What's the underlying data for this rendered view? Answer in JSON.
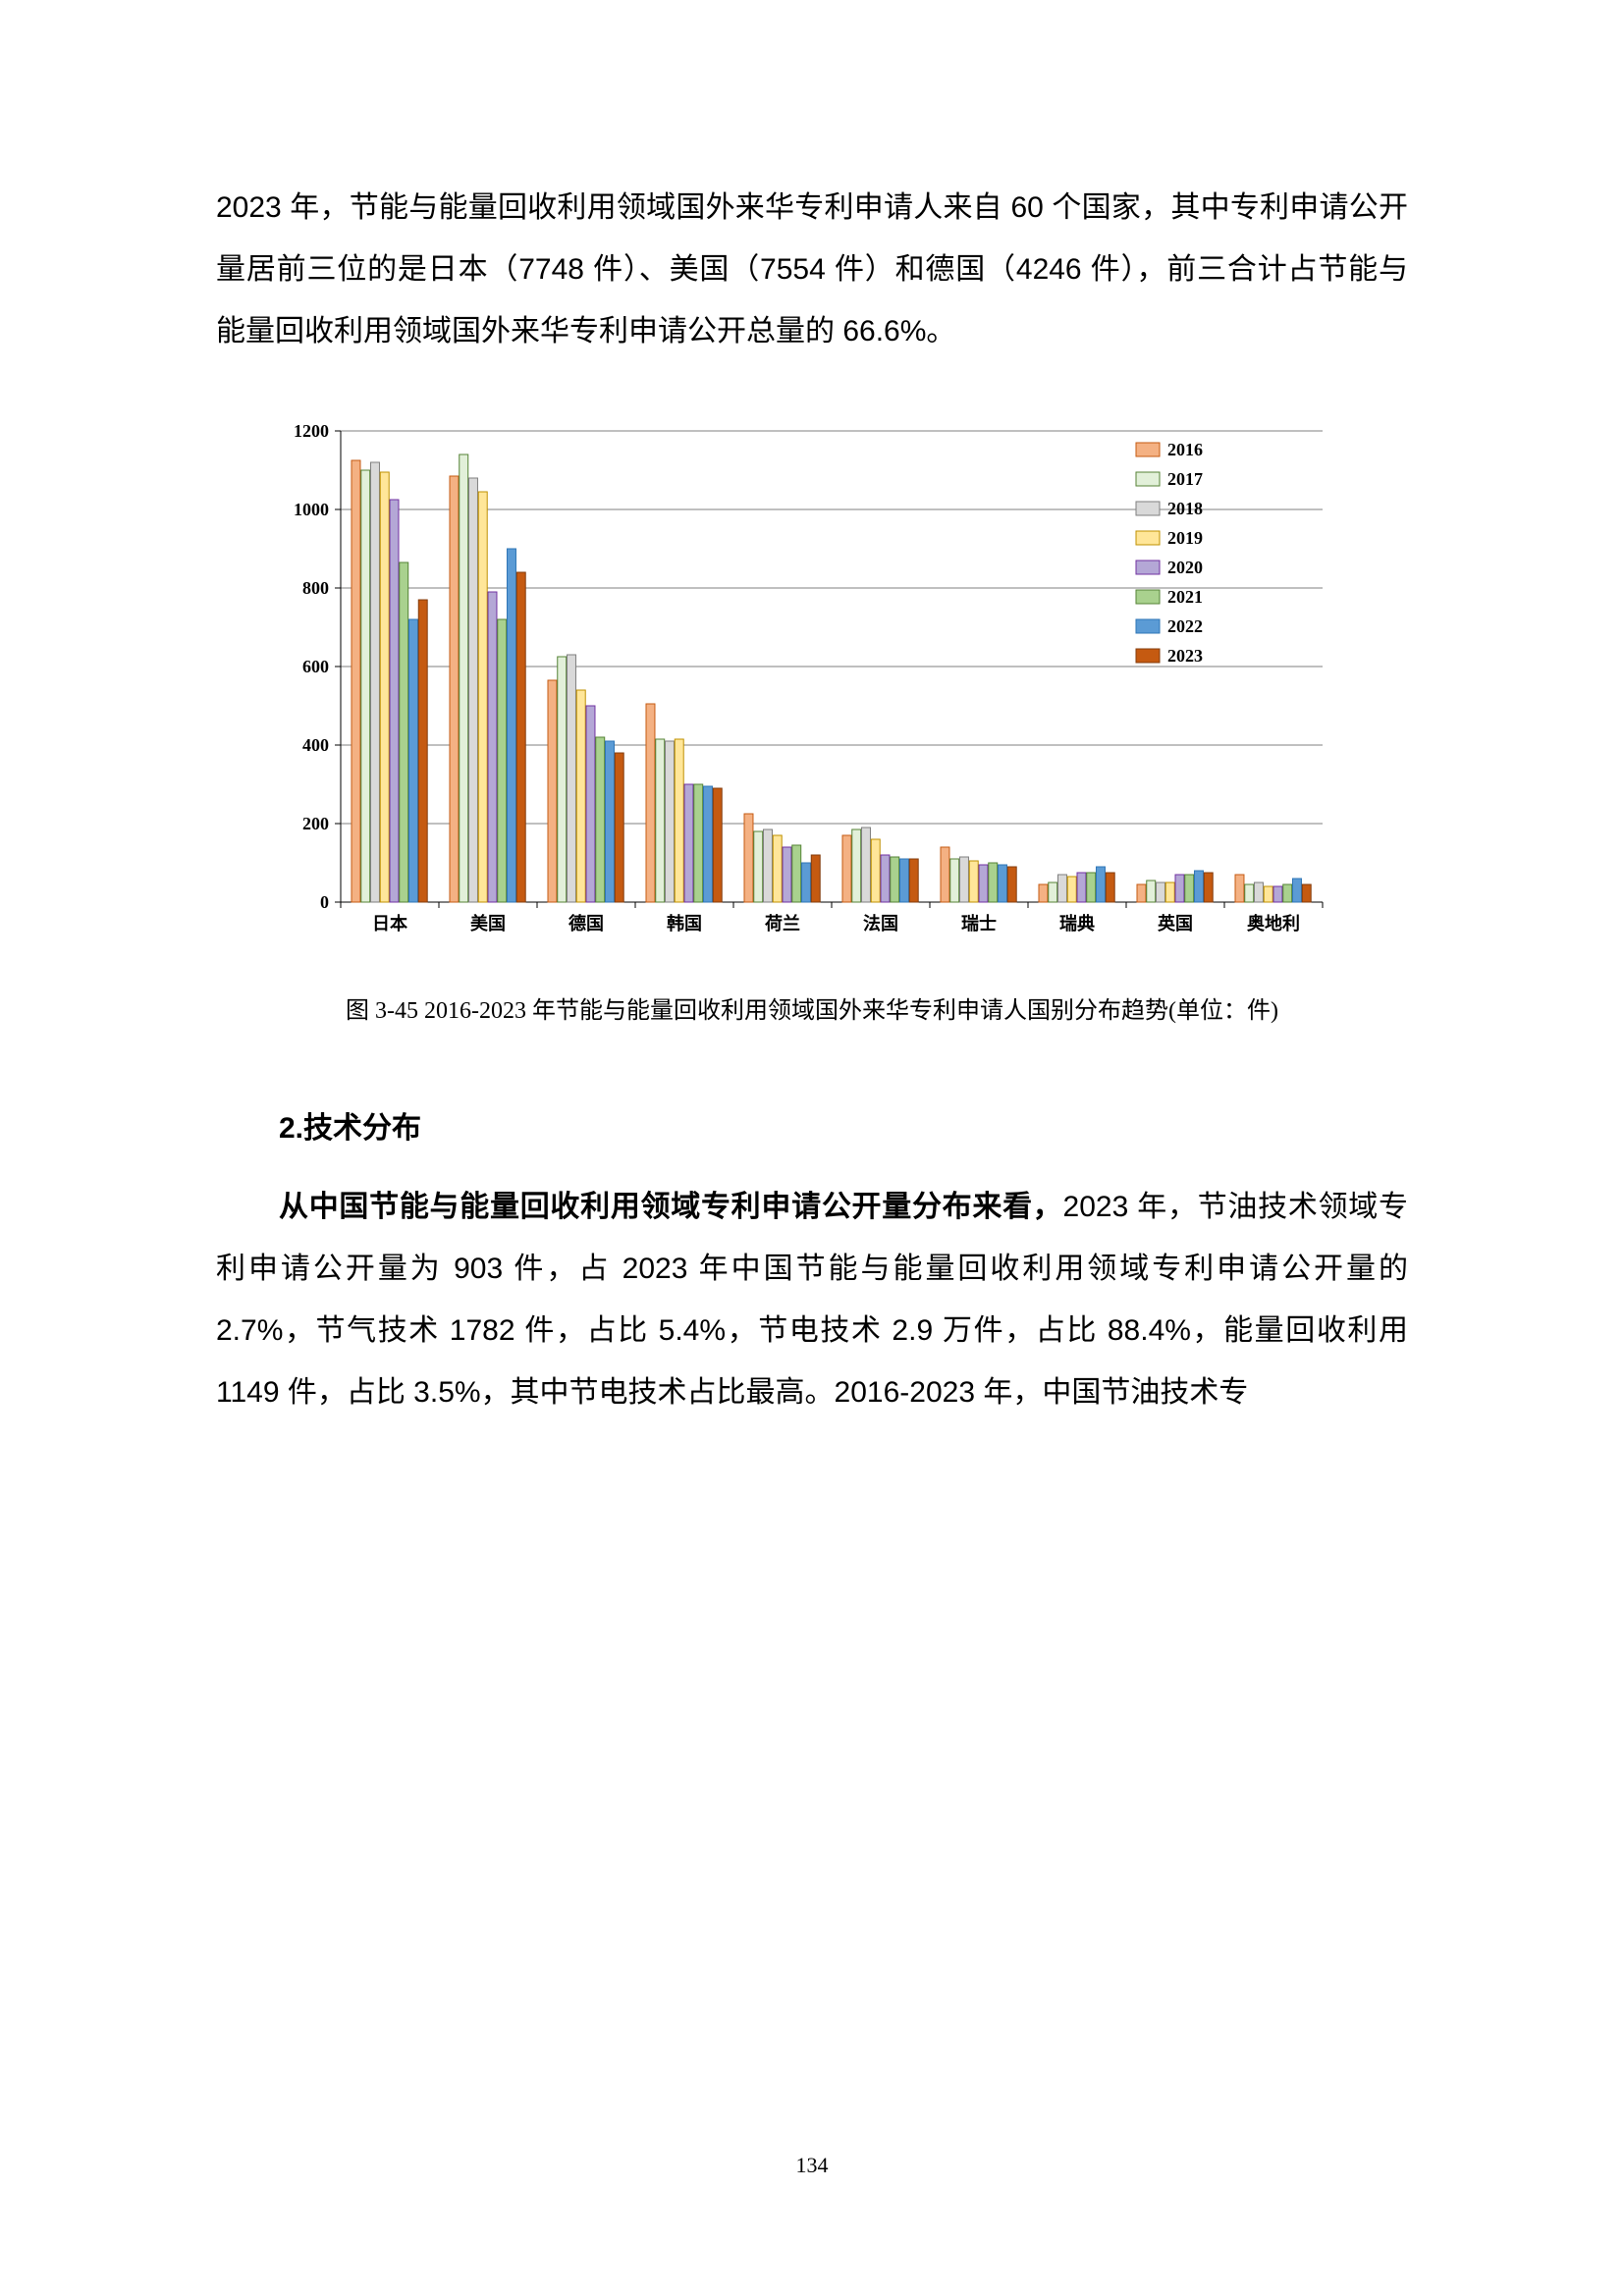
{
  "para_top_1": "2023 年，节能与能量回收利用领域国外来华专利申请人来自 60 个国家，其中专利申请公开量居前三位的是日本（7748 件）、美国（7554 件）和德国（4246 件），前三合计占节能与能量回收利用领域国外来华专利申请公开总量的 66.6%。",
  "chart_caption": "图 3-45 2016-2023 年节能与能量回收利用领域国外来华专利申请人国别分布趋势(单位：件)",
  "section_head": "2.技术分布",
  "para_bot_bold": "从中国节能与能量回收利用领域专利申请公开量分布来看，",
  "para_bot_rest": "2023 年，节油技术领域专利申请公开量为 903 件，占 2023 年中国节能与能量回收利用领域专利申请公开量的 2.7%，节气技术 1782 件，占比 5.4%，节电技术 2.9 万件，占比 88.4%，能量回收利用 1149 件，占比 3.5%，其中节电技术占比最高。2016-2023 年，中国节油技术专",
  "page_number": "134",
  "chart": {
    "type": "bar",
    "categories": [
      "日本",
      "美国",
      "德国",
      "韩国",
      "荷兰",
      "法国",
      "瑞士",
      "瑞典",
      "英国",
      "奥地利"
    ],
    "series_names": [
      "2016",
      "2017",
      "2018",
      "2019",
      "2020",
      "2021",
      "2022",
      "2023"
    ],
    "series_colors": [
      "#f4b183",
      "#e2f0d9",
      "#d9d9d9",
      "#ffe699",
      "#b4a7d6",
      "#a9d18e",
      "#5b9bd5",
      "#c55a11"
    ],
    "series_border_colors": [
      "#c55a11",
      "#548235",
      "#7f7f7f",
      "#bf9000",
      "#7030a0",
      "#548235",
      "#2e75b6",
      "#843c0c"
    ],
    "data": [
      [
        1125,
        1100,
        1120,
        1095,
        1025,
        865,
        720,
        770
      ],
      [
        1085,
        1140,
        1080,
        1045,
        790,
        720,
        900,
        840
      ],
      [
        565,
        625,
        630,
        540,
        500,
        420,
        410,
        380
      ],
      [
        505,
        415,
        410,
        415,
        300,
        300,
        295,
        290
      ],
      [
        225,
        180,
        185,
        170,
        140,
        145,
        100,
        120
      ],
      [
        170,
        185,
        190,
        160,
        120,
        115,
        110,
        110
      ],
      [
        140,
        110,
        115,
        105,
        95,
        100,
        95,
        90
      ],
      [
        45,
        50,
        70,
        65,
        75,
        75,
        90,
        75
      ],
      [
        45,
        55,
        50,
        50,
        70,
        70,
        80,
        75
      ],
      [
        70,
        45,
        50,
        40,
        40,
        45,
        60,
        45
      ]
    ],
    "ylim": [
      0,
      1200
    ],
    "ytick_step": 200,
    "bar_group_width": 0.78,
    "background_color": "#ffffff",
    "axis_color": "#000000",
    "legend_years": [
      "2016",
      "2017",
      "2018",
      "2019",
      "2020",
      "2021",
      "2022",
      "2023"
    ]
  }
}
